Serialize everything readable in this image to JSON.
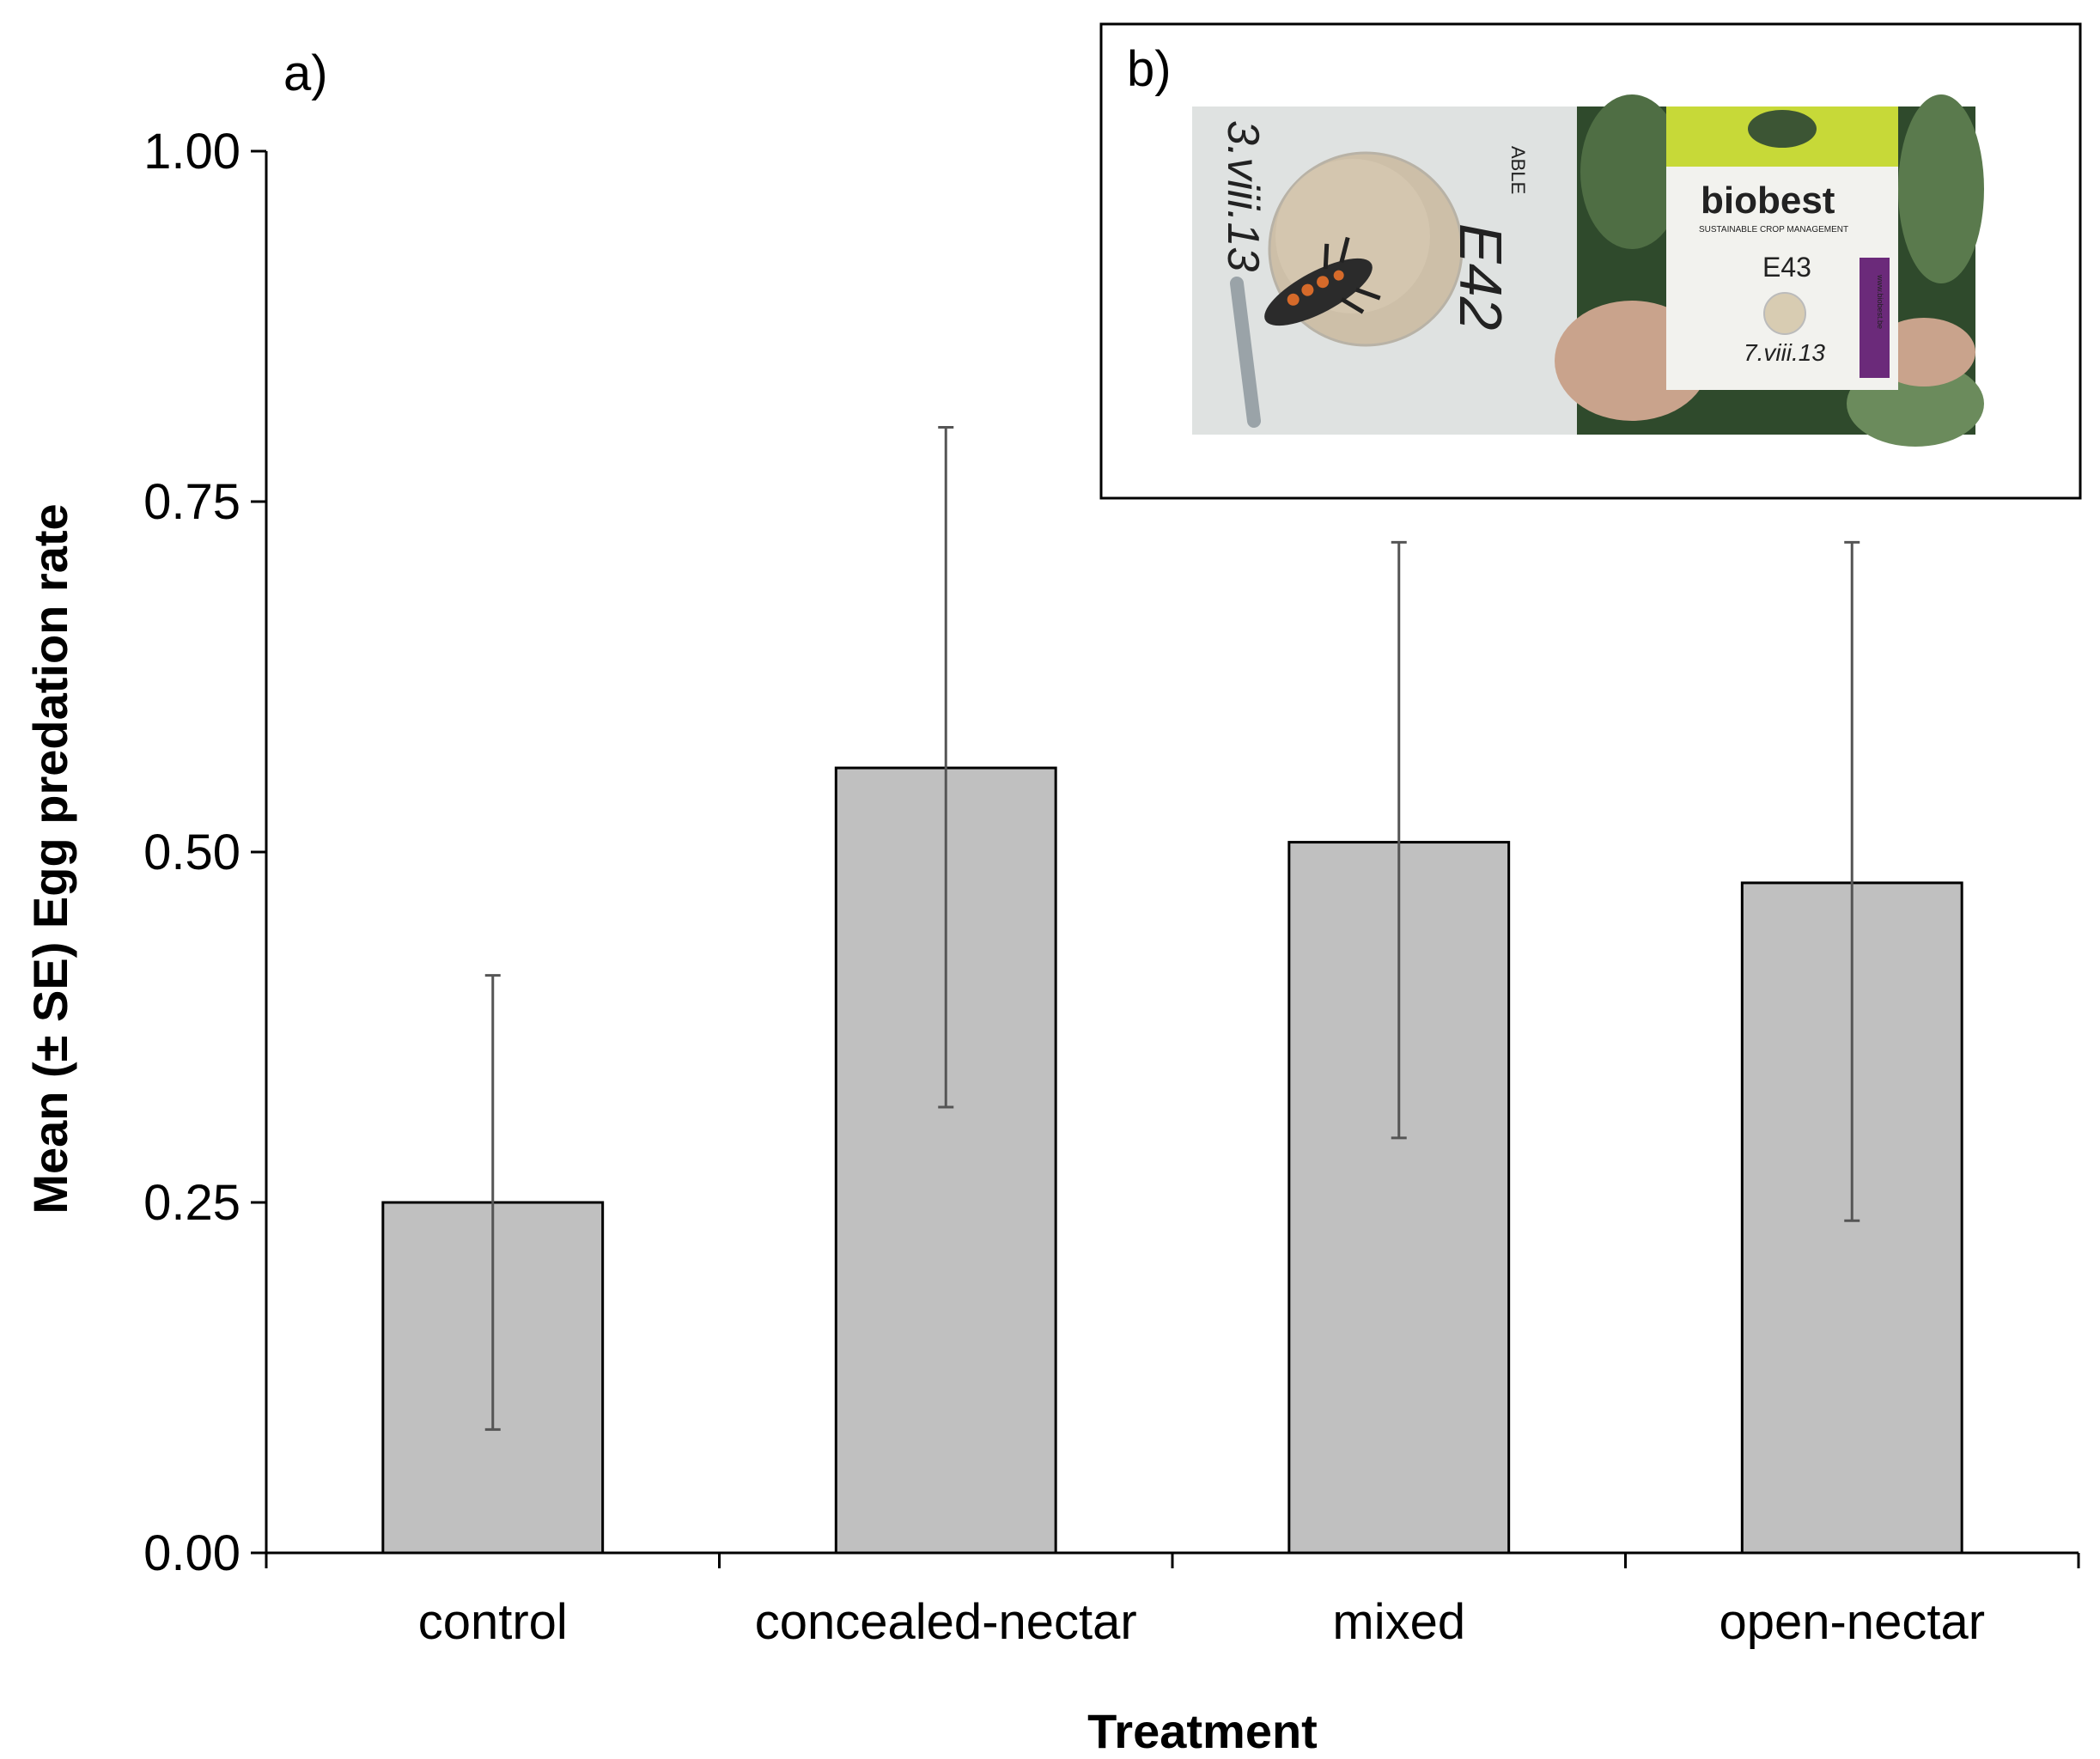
{
  "chart_data": {
    "type": "bar",
    "panel_label": "a)",
    "categories": [
      "control",
      "concealed-nectar",
      "mixed",
      "open-nectar"
    ],
    "values": [
      0.25,
      0.56,
      0.507,
      0.478
    ],
    "error_bars": {
      "lower": [
        0.088,
        0.318,
        0.296,
        0.237
      ],
      "upper": [
        0.412,
        0.803,
        0.721,
        0.721
      ]
    },
    "ylim": [
      0,
      1
    ],
    "yticks": [
      "0.00",
      "0.25",
      "0.50",
      "0.75",
      "1.00"
    ],
    "ytick_values": [
      0,
      0.25,
      0.5,
      0.75,
      1.0
    ],
    "xlabel": "Treatment",
    "ylabel": "Mean (± SE) Egg predation rate",
    "grid": false,
    "bar_color": "#c0c0c0",
    "bar_edge_color": "#000000",
    "error_bar_color": "#555555"
  },
  "inset": {
    "panel_label": "b)",
    "card_left_text": "E42",
    "card_left_date": "3.viii.13",
    "card_left_edge_text": "ABLE",
    "card_right_label": "E43",
    "card_right_date": "7.viii.13",
    "brand_text": "biobest",
    "brand_tagline": "SUSTAINABLE CROP MANAGEMENT",
    "brand_url": "www.biobest.be"
  }
}
